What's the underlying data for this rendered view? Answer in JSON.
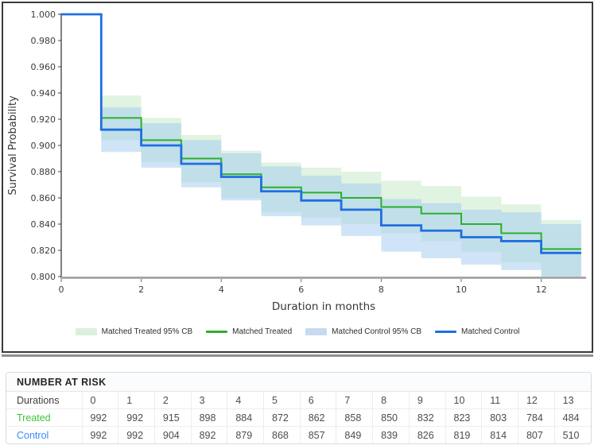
{
  "chart": {
    "y_axis_label": "Survival Probability",
    "x_axis_label": "Duration in months",
    "colors": {
      "treated_line": "#2bb02b",
      "treated_band": "#c9eac9",
      "control_line": "#1e6fe0",
      "control_band": "#a8cdef",
      "treated_band_legend": "#dcefdc",
      "control_band_legend": "#c7daf0",
      "y_axis": "#3c3c3c",
      "x_axis": "#9b9b9b",
      "tick_text": "#3c3c3c"
    },
    "legend": [
      {
        "label": "Matched Treated 95% CB",
        "swatch": "patch",
        "color": "#dcefdc"
      },
      {
        "label": "Matched Treated",
        "swatch": "line",
        "color": "#2bb02b"
      },
      {
        "label": "Matched Control 95% CB",
        "swatch": "patch",
        "color": "#c7daf0"
      },
      {
        "label": "Matched Control",
        "swatch": "line",
        "color": "#1e6fe0"
      }
    ]
  },
  "chart_data": {
    "type": "line",
    "subtype": "kaplan-meier-step",
    "title": "",
    "xlabel": "Duration in months",
    "ylabel": "Survival Probability",
    "xlim": [
      0,
      13.1
    ],
    "ylim": [
      0.8,
      1.0
    ],
    "grid": false,
    "legend_position": "bottom",
    "x_ticks": [
      0,
      2,
      4,
      6,
      8,
      10,
      12
    ],
    "y_ticks": [
      1.0,
      0.98,
      0.96,
      0.94,
      0.92,
      0.9,
      0.88,
      0.86,
      0.84,
      0.82,
      0.8
    ],
    "series": [
      {
        "name": "Matched Treated",
        "color": "#2bb02b",
        "step_x": [
          0,
          1,
          2,
          3,
          4,
          5,
          6,
          7,
          8,
          9,
          10,
          11,
          12,
          13
        ],
        "survival": [
          1.0,
          0.921,
          0.904,
          0.89,
          0.878,
          0.868,
          0.864,
          0.86,
          0.853,
          0.848,
          0.84,
          0.833,
          0.821
        ]
      },
      {
        "name": "Matched Control",
        "color": "#1e6fe0",
        "step_x": [
          0,
          1,
          2,
          3,
          4,
          5,
          6,
          7,
          8,
          9,
          10,
          11,
          12,
          13
        ],
        "survival": [
          1.0,
          0.912,
          0.9,
          0.886,
          0.876,
          0.865,
          0.858,
          0.851,
          0.839,
          0.835,
          0.83,
          0.827,
          0.818
        ]
      }
    ],
    "bands": [
      {
        "name": "Matched Treated 95% CB",
        "color": "#c9eac9",
        "opacity": 0.55,
        "start_x": 1,
        "upper": [
          0.938,
          0.921,
          0.908,
          0.896,
          0.887,
          0.883,
          0.88,
          0.873,
          0.869,
          0.861,
          0.855,
          0.843
        ],
        "lower": [
          0.904,
          0.887,
          0.872,
          0.86,
          0.849,
          0.845,
          0.84,
          0.833,
          0.827,
          0.819,
          0.811,
          0.799
        ]
      },
      {
        "name": "Matched Control 95% CB",
        "color": "#a8cdef",
        "opacity": 0.55,
        "start_x": 1,
        "upper": [
          0.929,
          0.917,
          0.904,
          0.894,
          0.884,
          0.877,
          0.871,
          0.859,
          0.856,
          0.851,
          0.849,
          0.84
        ],
        "lower": [
          0.895,
          0.883,
          0.868,
          0.858,
          0.846,
          0.839,
          0.831,
          0.819,
          0.814,
          0.809,
          0.805,
          0.796
        ]
      }
    ]
  },
  "risk_table": {
    "title": "NUMBER AT RISK",
    "rows": [
      {
        "label": "Durations",
        "color": "#3f3f3f",
        "values": [
          "0",
          "1",
          "2",
          "3",
          "4",
          "5",
          "6",
          "7",
          "8",
          "9",
          "10",
          "11",
          "12",
          "13"
        ]
      },
      {
        "label": "Treated",
        "color": "#3ec53e",
        "values": [
          "992",
          "992",
          "915",
          "898",
          "884",
          "872",
          "862",
          "858",
          "850",
          "832",
          "823",
          "803",
          "784",
          "484"
        ]
      },
      {
        "label": "Control",
        "color": "#3d8af7",
        "values": [
          "992",
          "992",
          "904",
          "892",
          "879",
          "868",
          "857",
          "849",
          "839",
          "826",
          "819",
          "814",
          "807",
          "510"
        ]
      }
    ]
  }
}
